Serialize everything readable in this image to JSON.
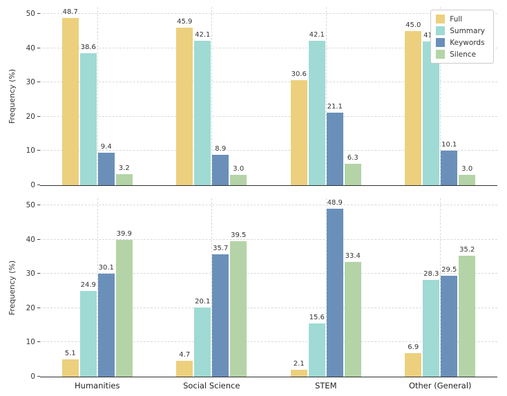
{
  "chart_data": [
    {
      "type": "bar",
      "title": "",
      "ylabel": "Frequency (%)",
      "ylim": [
        0,
        52
      ],
      "yticks": [
        0,
        10,
        20,
        30,
        40,
        50
      ],
      "grid": "dashed",
      "categories": [
        "Humanities",
        "Social Science",
        "STEM",
        "Other (General)"
      ],
      "series": [
        {
          "name": "Full",
          "color": "#ecd07e",
          "values": [
            48.7,
            45.9,
            30.6,
            45.0
          ]
        },
        {
          "name": "Summary",
          "color": "#9fdad4",
          "values": [
            38.6,
            42.1,
            42.1,
            41.9
          ]
        },
        {
          "name": "Keywords",
          "color": "#6a90ba",
          "values": [
            9.4,
            8.9,
            21.1,
            10.1
          ]
        },
        {
          "name": "Silence",
          "color": "#b4d4a7",
          "values": [
            3.2,
            3.0,
            6.3,
            3.0
          ]
        }
      ],
      "legend": {
        "position": "upper right",
        "entries": [
          "Full",
          "Summary",
          "Keywords",
          "Silence"
        ]
      },
      "show_x_tick_labels": false
    },
    {
      "type": "bar",
      "title": "",
      "ylabel": "Frequency (%)",
      "ylim": [
        0,
        52
      ],
      "yticks": [
        0,
        10,
        20,
        30,
        40,
        50
      ],
      "grid": "dashed",
      "categories": [
        "Humanities",
        "Social Science",
        "STEM",
        "Other (General)"
      ],
      "series": [
        {
          "name": "Full",
          "color": "#ecd07e",
          "values": [
            5.1,
            4.7,
            2.1,
            6.9
          ]
        },
        {
          "name": "Summary",
          "color": "#9fdad4",
          "values": [
            24.9,
            20.1,
            15.6,
            28.3
          ]
        },
        {
          "name": "Keywords",
          "color": "#6a90ba",
          "values": [
            30.1,
            35.7,
            48.9,
            29.5
          ]
        },
        {
          "name": "Silence",
          "color": "#b4d4a7",
          "values": [
            39.9,
            39.5,
            33.4,
            35.2
          ]
        }
      ],
      "legend": null,
      "show_x_tick_labels": true
    }
  ],
  "colors": {
    "background": "#ffffff",
    "axis": "#2f2f2f",
    "gridline": "#d8d8d8",
    "text": "#333333"
  }
}
